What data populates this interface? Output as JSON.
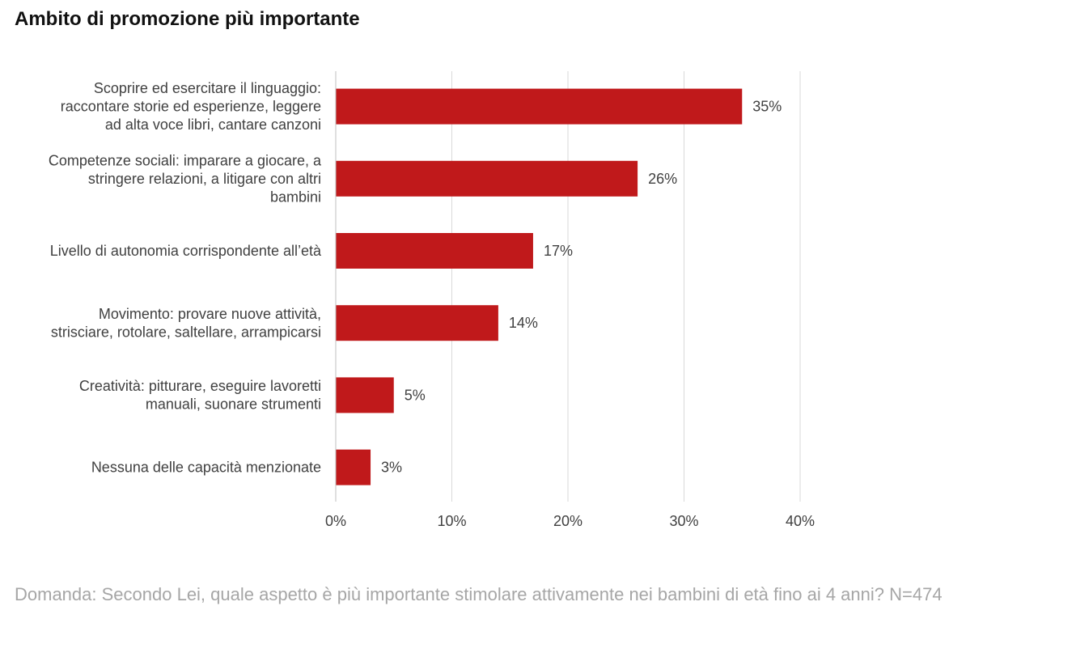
{
  "title": "Ambito di promozione più importante",
  "footnote": "Domanda: Secondo Lei, quale aspetto è più importante stimolare attivamente nei bambini di età fino ai 4 anni? N=474",
  "colors": {
    "bar": "#c0191b",
    "grid": "#d9d9d9",
    "text": "#404040"
  },
  "chart_data": {
    "type": "bar",
    "orientation": "horizontal",
    "categories": [
      [
        "Scoprire ed esercitare il linguaggio:",
        "raccontare storie ed esperienze, leggere",
        "ad alta voce libri, cantare canzoni"
      ],
      [
        "Competenze sociali: imparare a giocare, a",
        "stringere relazioni, a litigare con altri",
        "bambini"
      ],
      [
        "Livello di autonomia corrispondente all’età"
      ],
      [
        "Movimento: provare nuove attività,",
        "strisciare, rotolare, saltellare, arrampicarsi"
      ],
      [
        "Creatività: pitturare, eseguire lavoretti",
        "manuali, suonare strumenti"
      ],
      [
        "Nessuna delle capacità menzionate"
      ]
    ],
    "values": [
      35,
      26,
      17,
      14,
      5,
      3
    ],
    "value_labels": [
      "35%",
      "26%",
      "17%",
      "14%",
      "5%",
      "3%"
    ],
    "xlim": [
      0,
      40
    ],
    "xticks": [
      0,
      10,
      20,
      30,
      40
    ],
    "xtick_labels": [
      "0%",
      "10%",
      "20%",
      "30%",
      "40%"
    ],
    "grid": true,
    "legend": "none"
  }
}
